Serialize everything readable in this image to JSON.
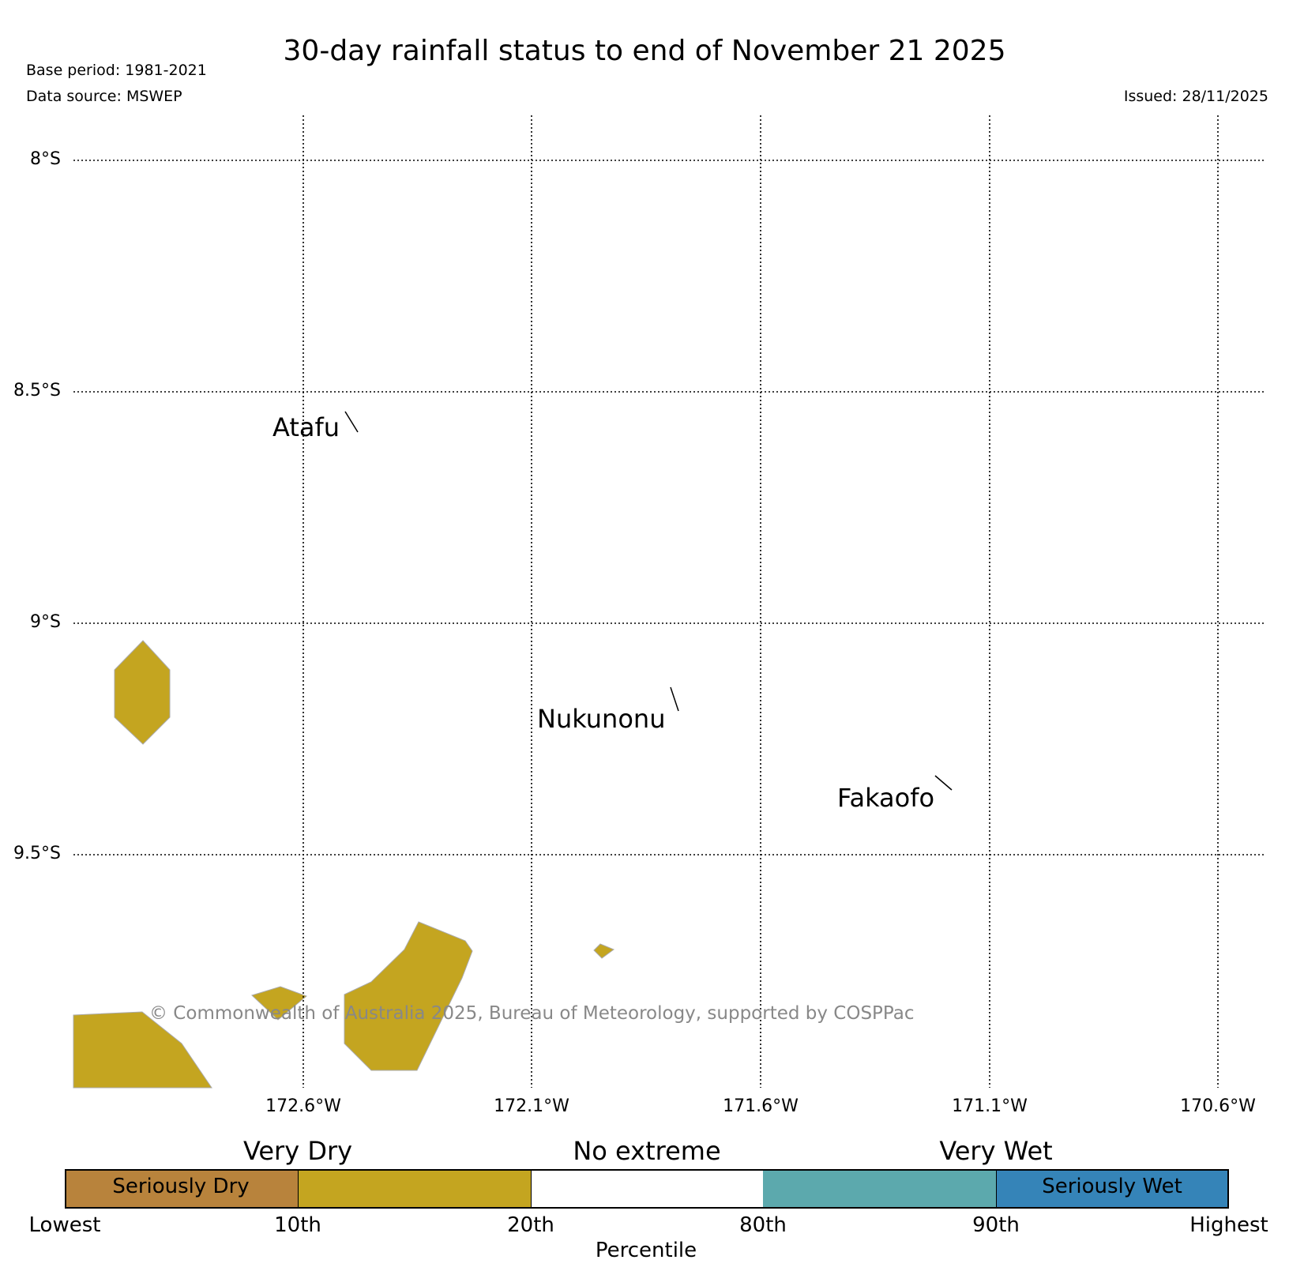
{
  "header": {
    "title": "30-day rainfall status to end of November 21 2025",
    "base_period": "Base period: 1981-2021",
    "data_source": "Data source: MSWEP",
    "issued": "Issued: 28/11/2025"
  },
  "map": {
    "lat_labels": [
      "8°S",
      "8.5°S",
      "9°S",
      "9.5°S"
    ],
    "lon_labels": [
      "172.6°W",
      "172.1°W",
      "171.6°W",
      "171.1°W",
      "170.6°W"
    ],
    "places": [
      "Atafu",
      "Nukunonu",
      "Fakaofo"
    ],
    "copyright": "© Commonwealth of Australia 2025, Bureau of Meteorology, supported by COSPPac",
    "dry_area_color": "#c4a520"
  },
  "colorbar": {
    "headings": [
      "Very Dry",
      "No extreme",
      "Very Wet"
    ],
    "segments": [
      {
        "label": "Seriously Dry",
        "color": "#b8833c"
      },
      {
        "label": "",
        "color": "#c4a520"
      },
      {
        "label": "",
        "color": "#ffffff"
      },
      {
        "label": "",
        "color": "#5ca9ad"
      },
      {
        "label": "Seriously Wet",
        "color": "#3584b8"
      }
    ],
    "ticks": [
      "Lowest",
      "10th",
      "20th",
      "80th",
      "90th",
      "Highest"
    ],
    "axis_title": "Percentile"
  }
}
